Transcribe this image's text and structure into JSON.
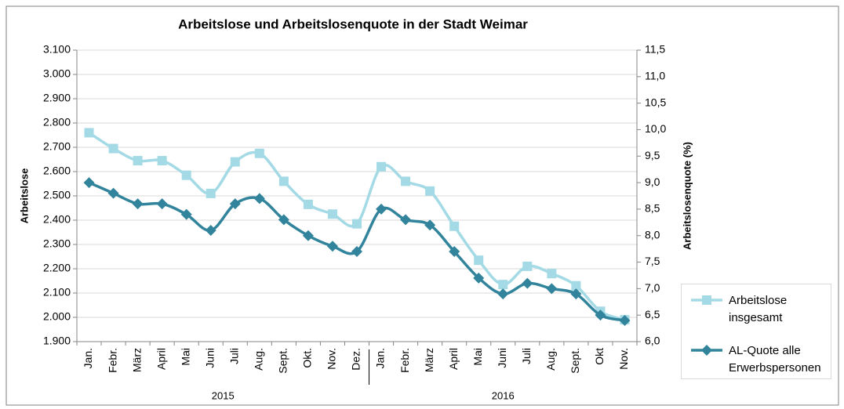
{
  "chart_data": {
    "type": "line",
    "title": "Arbeitslose und Arbeitslosenquote in der Stadt Weimar",
    "y_label": "Arbeitslose",
    "y2_label": "Arbeitslosenquote (%)",
    "categories": [
      "Jan.",
      "Febr.",
      "März",
      "April",
      "Mai",
      "Juni",
      "Juli",
      "Aug.",
      "Sept.",
      "Okt.",
      "Nov.",
      "Dez.",
      "Jan.",
      "Febr.",
      "März",
      "April",
      "Mai",
      "Juni",
      "Juli",
      "Aug.",
      "Sept.",
      "Okt",
      "Nov."
    ],
    "groups": [
      {
        "label": "2015",
        "size": 12
      },
      {
        "label": "2016",
        "size": 11
      }
    ],
    "series": [
      {
        "name": "Arbeitslose insgesamt",
        "color": "#a3dae5",
        "marker": "square",
        "values": [
          2760,
          2695,
          2645,
          2645,
          2585,
          2510,
          2640,
          2675,
          2560,
          2465,
          2425,
          2385,
          2620,
          2560,
          2520,
          2375,
          2235,
          2135,
          2210,
          2180,
          2130,
          2025,
          1990
        ]
      },
      {
        "name": "AL-Quote alle Erwerbspersonen",
        "color": "#31849b",
        "marker": "diamond",
        "axis": "y2",
        "values": [
          9.0,
          8.8,
          8.6,
          8.6,
          8.4,
          8.1,
          8.6,
          8.7,
          8.3,
          8.0,
          7.8,
          7.7,
          8.5,
          8.3,
          8.2,
          7.7,
          7.2,
          6.9,
          7.1,
          7.0,
          6.9,
          6.5,
          6.4
        ]
      }
    ],
    "ylim": [
      1900,
      3100
    ],
    "yticks": [
      {
        "value": 1900,
        "label": "1.900"
      },
      {
        "value": 2000,
        "label": "2.000"
      },
      {
        "value": 2100,
        "label": "2.100"
      },
      {
        "value": 2200,
        "label": "2.200"
      },
      {
        "value": 2300,
        "label": "2.300"
      },
      {
        "value": 2400,
        "label": "2.400"
      },
      {
        "value": 2500,
        "label": "2.500"
      },
      {
        "value": 2600,
        "label": "2.600"
      },
      {
        "value": 2700,
        "label": "2.700"
      },
      {
        "value": 2800,
        "label": "2.800"
      },
      {
        "value": 2900,
        "label": "2.900"
      },
      {
        "value": 3000,
        "label": "3.000"
      },
      {
        "value": 3100,
        "label": "3.100"
      }
    ],
    "y2lim": [
      6.0,
      11.5
    ],
    "y2ticks": [
      {
        "value": 6.0,
        "label": "6,0"
      },
      {
        "value": 6.5,
        "label": "6,5"
      },
      {
        "value": 7.0,
        "label": "7,0"
      },
      {
        "value": 7.5,
        "label": "7,5"
      },
      {
        "value": 8.0,
        "label": "8,0"
      },
      {
        "value": 8.5,
        "label": "8,5"
      },
      {
        "value": 9.0,
        "label": "9,0"
      },
      {
        "value": 9.5,
        "label": "9,5"
      },
      {
        "value": 10.0,
        "label": "10,0"
      },
      {
        "value": 10.5,
        "label": "10,5"
      },
      {
        "value": 11.0,
        "label": "11,0"
      },
      {
        "value": 11.5,
        "label": "11,5"
      }
    ],
    "grid": true,
    "legend": "right"
  }
}
